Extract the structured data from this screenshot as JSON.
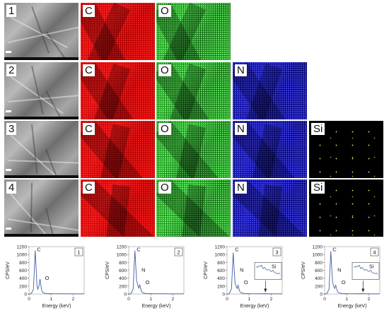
{
  "rows": [
    {
      "label": "1",
      "maps": [
        "C",
        "O"
      ]
    },
    {
      "label": "2",
      "maps": [
        "C",
        "O",
        "N"
      ]
    },
    {
      "label": "3",
      "maps": [
        "C",
        "O",
        "N",
        "Si"
      ]
    },
    {
      "label": "4",
      "maps": [
        "C",
        "O",
        "N",
        "Si"
      ]
    }
  ],
  "element_colors": {
    "C": "#d40000",
    "O": "#2da02d",
    "N": "#1515b0",
    "Si": "#000000"
  },
  "chart_data": [
    {
      "type": "line",
      "panel_label": "1",
      "xlabel": "Energy (keV)",
      "ylabel": "CPS/eV",
      "xlim": [
        0,
        2.5
      ],
      "ylim": [
        0,
        1200
      ],
      "xticks": [
        "0",
        "1",
        "2"
      ],
      "yticks": [
        "0",
        "200",
        "400",
        "600",
        "800",
        "1000",
        "1200"
      ],
      "x": [
        0.0,
        0.1,
        0.2,
        0.25,
        0.28,
        0.32,
        0.36,
        0.4,
        0.45,
        0.5,
        0.53,
        0.58,
        0.65,
        0.8,
        1.0,
        1.5,
        2.0,
        2.5
      ],
      "y": [
        0,
        5,
        120,
        700,
        1100,
        700,
        200,
        120,
        200,
        380,
        250,
        80,
        25,
        12,
        8,
        5,
        4,
        3
      ],
      "peak_labels": [
        "C",
        "O"
      ],
      "inset": null
    },
    {
      "type": "line",
      "panel_label": "2",
      "xlabel": "Energy (keV)",
      "ylabel": "CPS/eV",
      "xlim": [
        0,
        2.5
      ],
      "ylim": [
        0,
        1200
      ],
      "xticks": [
        "0",
        "1",
        "2"
      ],
      "yticks": [
        "0",
        "200",
        "400",
        "600",
        "800",
        "1000",
        "1200"
      ],
      "x": [
        0.0,
        0.1,
        0.2,
        0.25,
        0.28,
        0.32,
        0.36,
        0.39,
        0.42,
        0.46,
        0.5,
        0.53,
        0.58,
        0.65,
        0.8,
        1.0,
        1.5,
        2.0,
        2.5
      ],
      "y": [
        0,
        5,
        130,
        750,
        1100,
        700,
        320,
        280,
        200,
        150,
        230,
        160,
        60,
        25,
        12,
        8,
        5,
        4,
        3
      ],
      "peak_labels": [
        "C",
        "N",
        "O"
      ],
      "inset": null
    },
    {
      "type": "line",
      "panel_label": "3",
      "xlabel": "Energy (keV)",
      "ylabel": "CPS/eV",
      "xlim": [
        0,
        2.5
      ],
      "ylim": [
        0,
        1200
      ],
      "xticks": [
        "0",
        "1",
        "2"
      ],
      "yticks": [
        "0",
        "200",
        "400",
        "600",
        "800",
        "1000",
        "1200"
      ],
      "x": [
        0.0,
        0.1,
        0.2,
        0.25,
        0.28,
        0.32,
        0.36,
        0.39,
        0.42,
        0.46,
        0.5,
        0.53,
        0.58,
        0.65,
        0.8,
        1.0,
        1.5,
        1.74,
        2.0,
        2.5
      ],
      "y": [
        0,
        5,
        130,
        700,
        1050,
        650,
        300,
        240,
        180,
        140,
        220,
        150,
        60,
        25,
        12,
        8,
        6,
        8,
        4,
        3
      ],
      "peak_labels": [
        "C",
        "N",
        "O"
      ],
      "inset": {
        "label": "Si"
      }
    },
    {
      "type": "line",
      "panel_label": "4",
      "xlabel": "Energy (keV)",
      "ylabel": "CPS/eV",
      "xlim": [
        0,
        2.5
      ],
      "ylim": [
        0,
        1200
      ],
      "xticks": [
        "0",
        "1",
        "2"
      ],
      "yticks": [
        "0",
        "200",
        "400",
        "600",
        "800",
        "1000",
        "1200"
      ],
      "x": [
        0.0,
        0.1,
        0.2,
        0.25,
        0.28,
        0.32,
        0.36,
        0.39,
        0.42,
        0.46,
        0.5,
        0.53,
        0.58,
        0.65,
        0.8,
        1.0,
        1.5,
        1.74,
        2.0,
        2.5
      ],
      "y": [
        0,
        5,
        130,
        720,
        1080,
        680,
        300,
        240,
        180,
        140,
        230,
        160,
        60,
        25,
        12,
        8,
        6,
        8,
        4,
        3
      ],
      "peak_labels": [
        "C",
        "N",
        "O"
      ],
      "inset": {
        "label": "Si"
      }
    }
  ]
}
